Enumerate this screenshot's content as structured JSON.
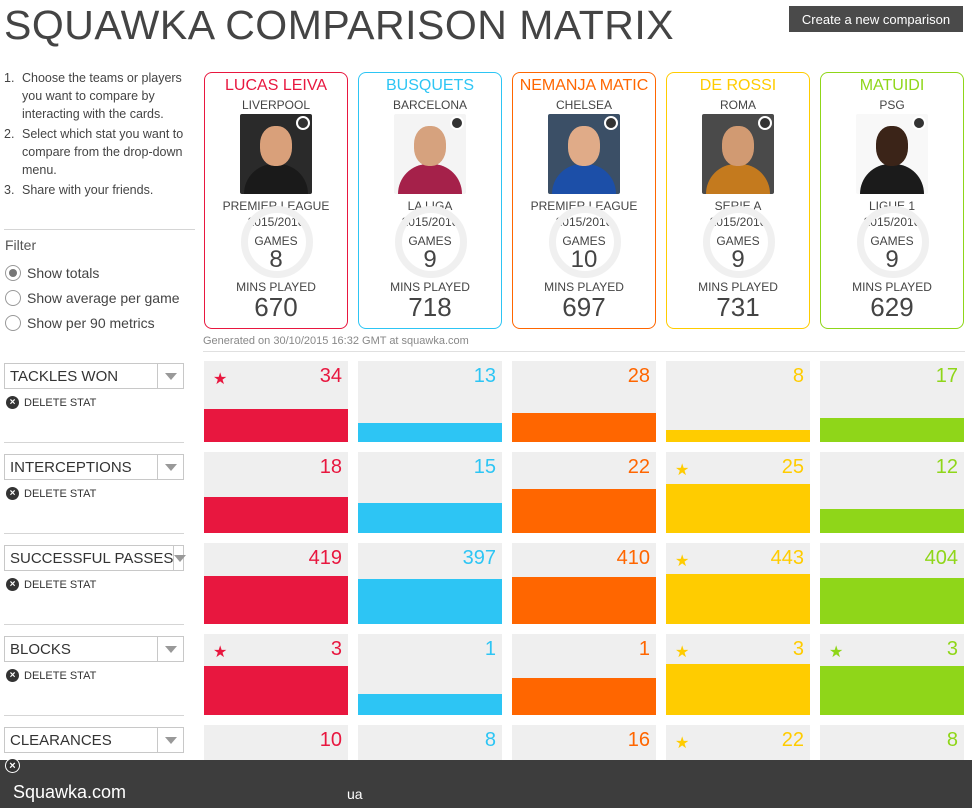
{
  "header": {
    "title": "SQUAWKA COMPARISON MATRIX",
    "create_button": "Create a new comparison"
  },
  "instructions": [
    {
      "num": "1.",
      "text": "Choose the teams or players you want to compare by interacting with the cards."
    },
    {
      "num": "2.",
      "text": "Select which stat you want to compare from the drop-down menu."
    },
    {
      "num": "3.",
      "text": "Share with your friends."
    }
  ],
  "filter": {
    "label": "Filter",
    "options": [
      {
        "label": "Show totals",
        "checked": true
      },
      {
        "label": "Show average per game",
        "checked": false
      },
      {
        "label": "Show per 90 metrics",
        "checked": false
      }
    ]
  },
  "players": [
    {
      "name": "LUCAS LEIVA",
      "team": "LIVERPOOL",
      "league": "PREMIER LEAGUE",
      "season": "2015/2016",
      "games_label": "GAMES",
      "games": "8",
      "mins_label": "MINS PLAYED",
      "mins": "670",
      "color": "#e8173f",
      "photo_bg": "#2a2a2a",
      "shirt": "#1a1a1a",
      "skin": "#d9a07a"
    },
    {
      "name": "BUSQUETS",
      "team": "BARCELONA",
      "league": "LA LIGA",
      "season": "2015/2016",
      "games_label": "GAMES",
      "games": "9",
      "mins_label": "MINS PLAYED",
      "mins": "718",
      "color": "#2dc5f4",
      "photo_bg": "#f4f4f4",
      "shirt": "#a5214a",
      "skin": "#d6a27e"
    },
    {
      "name": "NEMANJA MATIC",
      "team": "CHELSEA",
      "league": "PREMIER LEAGUE",
      "season": "2015/2016",
      "games_label": "GAMES",
      "games": "10",
      "mins_label": "MINS PLAYED",
      "mins": "697",
      "color": "#ff6600",
      "photo_bg": "#3b4f66",
      "shirt": "#1c4fa8",
      "skin": "#e0ab88"
    },
    {
      "name": "DE ROSSI",
      "team": "ROMA",
      "league": "SERIE A",
      "season": "2015/2016",
      "games_label": "GAMES",
      "games": "9",
      "mins_label": "MINS PLAYED",
      "mins": "731",
      "color": "#ffcc00",
      "photo_bg": "#4a4a4a",
      "shirt": "#c47a1e",
      "skin": "#d19a72"
    },
    {
      "name": "MATUIDI",
      "team": "PSG",
      "league": "LIGUE 1",
      "season": "2015/2016",
      "games_label": "GAMES",
      "games": "9",
      "mins_label": "MINS PLAYED",
      "mins": "629",
      "color": "#8fd619",
      "photo_bg": "#f8f8f8",
      "shirt": "#1b1b1b",
      "skin": "#3b2418"
    }
  ],
  "generated_text": "Generated on 30/10/2015 16:32 GMT at squawka.com",
  "delete_label": "DELETE STAT",
  "stats": [
    {
      "label": "TACKLES WON",
      "values": [
        "34",
        "13",
        "28",
        "8",
        "17"
      ],
      "fill": [
        0.41,
        0.23,
        0.36,
        0.15,
        0.3
      ],
      "stars": [
        true,
        false,
        false,
        false,
        false
      ]
    },
    {
      "label": "INTERCEPTIONS",
      "values": [
        "18",
        "15",
        "22",
        "25",
        "12"
      ],
      "fill": [
        0.45,
        0.37,
        0.54,
        0.61,
        0.3
      ],
      "stars": [
        false,
        false,
        false,
        true,
        false
      ]
    },
    {
      "label": "SUCCESSFUL PASSES",
      "values": [
        "419",
        "397",
        "410",
        "443",
        "404"
      ],
      "fill": [
        0.59,
        0.56,
        0.58,
        0.62,
        0.57
      ],
      "stars": [
        false,
        false,
        false,
        true,
        false
      ]
    },
    {
      "label": "BLOCKS",
      "values": [
        "3",
        "1",
        "1",
        "3",
        "3"
      ],
      "fill": [
        0.6,
        0.2,
        0.2,
        0.6,
        0.6
      ],
      "stars": [
        true,
        false,
        false,
        true,
        true
      ]
    },
    {
      "label": "CLEARANCES",
      "values": [
        "10",
        "8",
        "16",
        "22",
        "8"
      ],
      "fill": [
        0.3,
        0.25,
        0.45,
        0.62,
        0.25
      ],
      "stars": [
        false,
        false,
        false,
        true,
        false
      ]
    }
  ],
  "footer": {
    "brand": "Squawka.com",
    "partial": "ua",
    "close": "×"
  }
}
